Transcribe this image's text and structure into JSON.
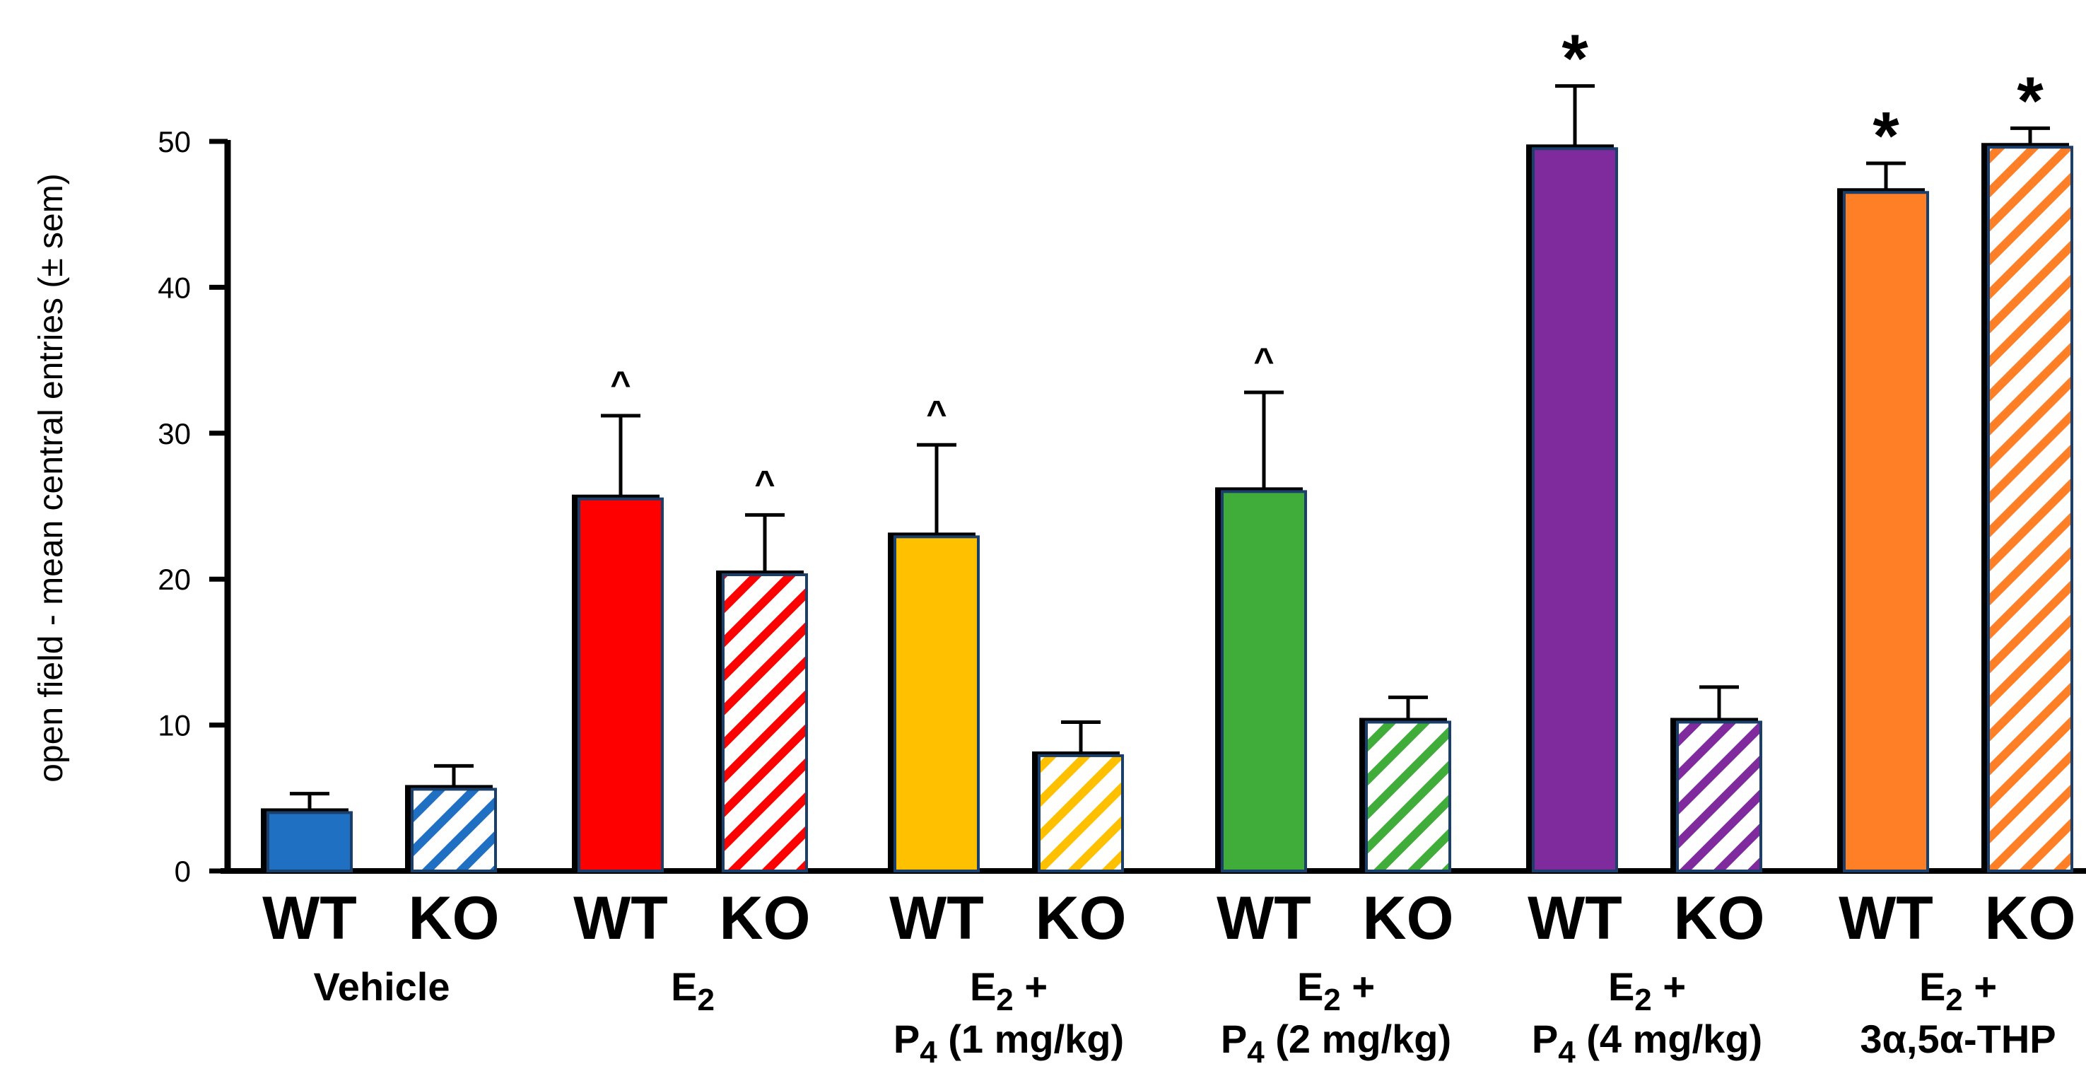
{
  "chart_data": {
    "type": "bar",
    "title": "",
    "ylabel": "open field - mean central entries (± sem)",
    "xlabel": "",
    "ylim": [
      0,
      50
    ],
    "yticks": [
      0,
      10,
      20,
      30,
      40,
      50
    ],
    "grid": false,
    "groups": [
      {
        "label_lines": [
          [
            "",
            "Vehicle"
          ]
        ],
        "color": "#1f6fc2",
        "bars": [
          {
            "genotype": "WT",
            "value": 4.0,
            "error": 1.3,
            "mark": ""
          },
          {
            "genotype": "KO",
            "value": 5.6,
            "error": 1.6,
            "mark": ""
          }
        ]
      },
      {
        "label_lines": [
          [
            "E",
            "2",
            ""
          ]
        ],
        "color": "#ff0000",
        "bars": [
          {
            "genotype": "WT",
            "value": 25.5,
            "error": 5.7,
            "mark": "^"
          },
          {
            "genotype": "KO",
            "value": 20.3,
            "error": 4.1,
            "mark": "^"
          }
        ]
      },
      {
        "label_lines": [
          [
            "E",
            "2",
            " +"
          ],
          [
            "P",
            "4",
            " (1 mg/kg)"
          ]
        ],
        "color": "#ffc000",
        "bars": [
          {
            "genotype": "WT",
            "value": 22.9,
            "error": 6.3,
            "mark": "^"
          },
          {
            "genotype": "KO",
            "value": 7.9,
            "error": 2.3,
            "mark": ""
          }
        ]
      },
      {
        "label_lines": [
          [
            "E",
            "2",
            " +"
          ],
          [
            "P",
            "4",
            " (2 mg/kg)"
          ]
        ],
        "color": "#40ad3a",
        "bars": [
          {
            "genotype": "WT",
            "value": 26.0,
            "error": 6.8,
            "mark": "^"
          },
          {
            "genotype": "KO",
            "value": 10.2,
            "error": 1.7,
            "mark": ""
          }
        ]
      },
      {
        "label_lines": [
          [
            "E",
            "2",
            " +"
          ],
          [
            "P",
            "4",
            " (4 mg/kg)"
          ]
        ],
        "color": "#7f2b9e",
        "bars": [
          {
            "genotype": "WT",
            "value": 49.5,
            "error": 4.3,
            "mark": "*"
          },
          {
            "genotype": "KO",
            "value": 10.2,
            "error": 2.4,
            "mark": ""
          }
        ]
      },
      {
        "label_lines": [
          [
            "E",
            "2",
            " +"
          ],
          [
            "",
            "3α,5α-THP"
          ]
        ],
        "color": "#ff7f27",
        "bars": [
          {
            "genotype": "WT",
            "value": 46.5,
            "error": 2.0,
            "mark": "*"
          },
          {
            "genotype": "KO",
            "value": 49.6,
            "error": 1.3,
            "mark": "*"
          }
        ]
      }
    ]
  }
}
